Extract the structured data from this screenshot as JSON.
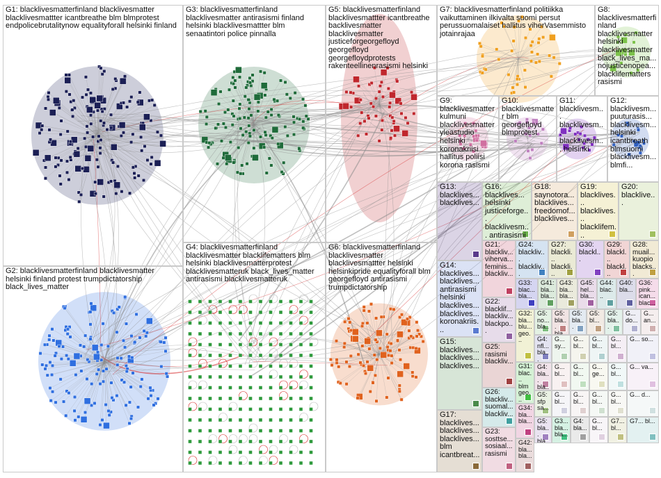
{
  "colors": {
    "edge": "#8c8c8c",
    "edge_highlight": "#d62728",
    "background": "#ffffff"
  },
  "groups": [
    {
      "id": "G1",
      "text": "G1: blacklivesmatterfinland blacklivesmatter blacklivesmattter icantbreathe blm blmprotest endpolicebrutalitynow equalityforall helsinki finland",
      "color": "#1b1f55"
    },
    {
      "id": "G2",
      "text": "G2: blacklivesmatterfinland blacklivesmatter helsinki finland protest trumpdictatorship black_lives_matter",
      "color": "#2f6fe0"
    },
    {
      "id": "G3",
      "text": "G3: blacklivesmatterfinland blacklivesmatter antirasismi finland helsinki blacklivesmattter blm senaatintori police pinnalla",
      "color": "#1f6b3a"
    },
    {
      "id": "G4",
      "text": "G4: blacklivesmatterfinland blacklivesmatter blacklifematters blm helsinki blacklivesmatterprotest blacklivesmatteruk black_lives_matter antirasismi blacklivesmatteruk",
      "color": "#2e9a3c"
    },
    {
      "id": "G5",
      "text": "G5: blacklivesmatterfinland blacklivesmattter icantbreathe backlivesmatter blacklivesmatter justiceforgeorgefloyd georgefloyd georgefloydprotests rakenteellinenrasismi helsinki",
      "color": "#c0272d"
    },
    {
      "id": "G6",
      "text": "G6: blacklivesmatterfinland blacklivesmatter blacklivesmattter helsinki helsinkipride equalityforall blm georgefloyd antirasismi trumpdictatorship",
      "color": "#e0621e"
    },
    {
      "id": "G7",
      "text": "G7: blacklivesmatterfinland politiikka vaikuttaminen ilkivalta suomi persut perussuomalaiset hallitus viherVasemmisto jotainrajaa",
      "color": "#f0a020"
    },
    {
      "id": "G8",
      "text": "G8: blacklivesmatterfinland blacklivesmatter helsinki blacklivesmatter black_lives_ma... nojusticenopea... blacklifematters rasismi",
      "color": "#7cc24a"
    },
    {
      "id": "G9",
      "text": "G9: blacklivesmatter kulmuni blacklivesmatter yleastudio helsinki koronakriisi hallitus poliisi korona rasismi",
      "color": "#d070a0"
    },
    {
      "id": "G10",
      "text": "G10: blacklivesmatter blm georgefloyd blmprotest",
      "color": "#c080c0"
    },
    {
      "id": "G11",
      "text": "G11: blacklivesm... blacklivesm... blacklivesm... helsinki",
      "color": "#8030c0"
    },
    {
      "id": "G12",
      "text": "G12: blacklivesm... puuturasis... blacklivesm... helsinki icantbreath blmsuomi blacklivesm... blmfi...",
      "color": "#3060c0"
    },
    {
      "id": "G13",
      "text": "G13: blacklives... blacklives...",
      "color": "#5a3a8a"
    },
    {
      "id": "G14",
      "text": "G14: blacklives... blacklives... antirasismi helsinki blacklives... blacklives... koronakriis...",
      "color": "#5a7ad0"
    },
    {
      "id": "G15",
      "text": "G15: blacklives... blacklives... blacklives...",
      "color": "#4a8a4a"
    },
    {
      "id": "G16",
      "text": "G16: blacklives... helsinki justiceforge... blacklivesm... antirasismi",
      "color": "#6ab04a"
    },
    {
      "id": "G17",
      "text": "G17: blacklives... blacklives... blacklives... blm icantbreat...",
      "color": "#8a6a3a"
    },
    {
      "id": "G18",
      "text": "G18: saynotora... blacklives... freedomof... blacklives...",
      "color": "#d0a060"
    },
    {
      "id": "G19",
      "text": "G19: blacklives... blacklives... blacklifem... blacklives... blacklives...",
      "color": "#d0c040"
    },
    {
      "id": "G20",
      "text": "G20: blacklive...",
      "color": "#a0c060"
    },
    {
      "id": "G21",
      "text": "G21: blackliv... viherva... feminis... blackliv...",
      "color": "#c04060"
    },
    {
      "id": "G22",
      "text": "G22: blacklif... blackliv... blackpo...",
      "color": "#9060a0"
    },
    {
      "id": "G23",
      "text": "G23: sosttse... sosiaal... rasismi",
      "color": "#c06080"
    },
    {
      "id": "G24",
      "text": "G24: blackliv... blackliv...",
      "color": "#4080c0"
    },
    {
      "id": "G25",
      "text": "G25: rasismi blackliv...",
      "color": "#a04040"
    },
    {
      "id": "G26",
      "text": "G26: blackliv... suomal... blackliv...",
      "color": "#40a0a0"
    },
    {
      "id": "G27",
      "text": "G27: blackli... blackli... blackli...",
      "color": "#a0a040"
    },
    {
      "id": "G28",
      "text": "G28: muail... kuopio blacks...",
      "color": "#c0a040"
    },
    {
      "id": "G29",
      "text": "G29: blackl... blackl...",
      "color": "#c04040"
    },
    {
      "id": "G30",
      "text": "G30: blackl...",
      "color": "#8040c0"
    },
    {
      "id": "G31",
      "text": "G31: blac... blm geo...",
      "color": "#40c040"
    },
    {
      "id": "G32",
      "text": "G32: bla... blu... geo...",
      "color": "#c0c040"
    },
    {
      "id": "G33",
      "text": "G33: blac... bla...",
      "color": "#4040c0"
    },
    {
      "id": "G34",
      "text": "G34: bla... bla...",
      "color": "#c04080"
    },
    {
      "id": "G35",
      "text": "G3... bla... bla...",
      "color": "#40c080"
    },
    {
      "id": "G36",
      "text": "G36: pink... ican... blac...",
      "color": "#d060a0"
    },
    {
      "id": "G40",
      "text": "G40: bla...",
      "color": "#6060a0"
    },
    {
      "id": "G41",
      "text": "G41: bla... bla...",
      "color": "#60a060"
    },
    {
      "id": "G42",
      "text": "G42: bla... bla...",
      "color": "#a06060"
    },
    {
      "id": "G43",
      "text": "G43: bla... bla...",
      "color": "#a0a060"
    },
    {
      "id": "G44",
      "text": "G44: blac...",
      "color": "#60a0a0"
    },
    {
      "id": "G45",
      "text": "G45: hel... bla...",
      "color": "#a060a0"
    },
    {
      "id": "G4x",
      "text": "G4: nfl... bla...",
      "color": "#8080c0"
    },
    {
      "id": "G5a",
      "text": "G5: no... bla...",
      "color": "#80c080"
    },
    {
      "id": "G5b",
      "text": "G5: bla... bla...",
      "color": "#c08080"
    },
    {
      "id": "G5c",
      "text": "G5: bla...",
      "color": "#80a0c0"
    },
    {
      "id": "G5d",
      "text": "G5: bl...",
      "color": "#c0a080"
    },
    {
      "id": "G5e",
      "text": "G5: sfp sa...",
      "color": "#a0c080"
    },
    {
      "id": "G5f",
      "text": "G5: bla... bla...",
      "color": "#a080c0"
    },
    {
      "id": "G5g",
      "text": "G5: bla...",
      "color": "#80c0a0"
    },
    {
      "id": "G4y",
      "text": "G4: bla... bla...",
      "color": "#c080a0"
    },
    {
      "id": "G4z",
      "text": "G4: bla...",
      "color": "#a0a0a0"
    },
    {
      "id": "G7a",
      "text": "G7... bl...",
      "color": "#c0c080"
    },
    {
      "id": "G7b",
      "text": "G7... bl...",
      "color": "#80c0c0"
    },
    {
      "id": "Gt1",
      "text": "G... do...",
      "color": "#b0b0d0"
    },
    {
      "id": "Gt2",
      "text": "G... an...",
      "color": "#d0b0b0"
    },
    {
      "id": "Gt3",
      "text": "G... sy...",
      "color": "#b0d0b0"
    },
    {
      "id": "Gt4",
      "text": "G... bl...",
      "color": "#d0d0b0"
    },
    {
      "id": "Gt5",
      "text": "G... bl...",
      "color": "#b0d0d0"
    },
    {
      "id": "Gt6",
      "text": "G... bl...",
      "color": "#d0b0d0"
    },
    {
      "id": "Gt7",
      "text": "G... so...",
      "color": "#c0c0e0"
    },
    {
      "id": "Gt8",
      "text": "G... bl...",
      "color": "#e0c0c0"
    },
    {
      "id": "Gt9",
      "text": "G... bl...",
      "color": "#c0e0c0"
    },
    {
      "id": "Gt10",
      "text": "G... ge...",
      "color": "#e0e0c0"
    },
    {
      "id": "Gt11",
      "text": "G... bl...",
      "color": "#c0e0e0"
    },
    {
      "id": "Gt12",
      "text": "G... va...",
      "color": "#e0c0e0"
    },
    {
      "id": "Gt13",
      "text": "G... bl...",
      "color": "#d0d0e0"
    },
    {
      "id": "Gt14",
      "text": "G... bl...",
      "color": "#e0d0d0"
    },
    {
      "id": "Gt15",
      "text": "G... bl...",
      "color": "#d0e0d0"
    },
    {
      "id": "Gt16",
      "text": "G... bl...",
      "color": "#e0e0d0"
    },
    {
      "id": "Gt17",
      "text": "G... d...",
      "color": "#d0e0e0"
    },
    {
      "id": "Gt18",
      "text": "G... bl...",
      "color": "#e0d0e0"
    }
  ]
}
